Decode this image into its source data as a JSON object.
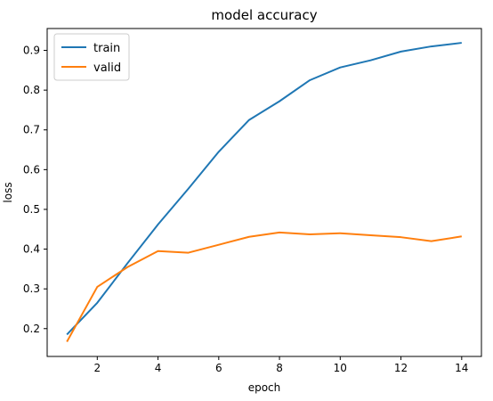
{
  "chart_data": {
    "type": "line",
    "title": "model accuracy",
    "xlabel": "epoch",
    "ylabel": "loss",
    "xlim": [
      0.35,
      14.65
    ],
    "ylim": [
      0.13,
      0.955
    ],
    "xticks": [
      2,
      4,
      6,
      8,
      10,
      12,
      14
    ],
    "yticks": [
      0.2,
      0.3,
      0.4,
      0.5,
      0.6,
      0.7,
      0.8,
      0.9
    ],
    "x": [
      1,
      2,
      3,
      4,
      5,
      6,
      7,
      8,
      9,
      10,
      11,
      12,
      13,
      14
    ],
    "series": [
      {
        "name": "train",
        "color": "#1f77b4",
        "values": [
          0.185,
          0.265,
          0.365,
          0.462,
          0.552,
          0.645,
          0.725,
          0.772,
          0.825,
          0.857,
          0.875,
          0.897,
          0.91,
          0.919
        ]
      },
      {
        "name": "valid",
        "color": "#ff7f0e",
        "values": [
          0.167,
          0.305,
          0.355,
          0.395,
          0.391,
          0.411,
          0.431,
          0.442,
          0.437,
          0.44,
          0.435,
          0.43,
          0.42,
          0.432
        ]
      }
    ],
    "legend_position": "top-left",
    "grid": false
  }
}
